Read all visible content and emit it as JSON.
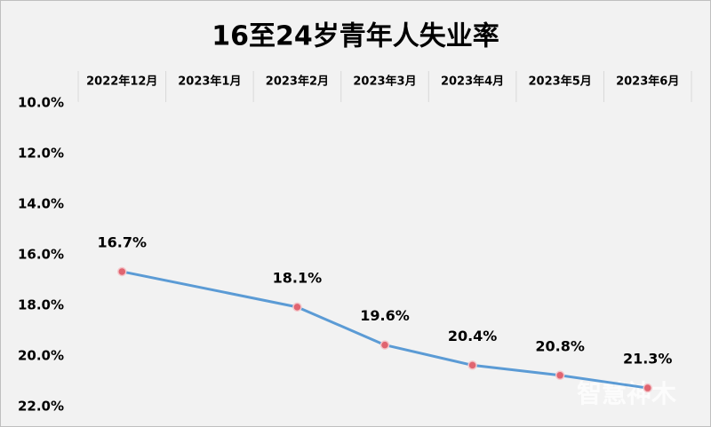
{
  "chart_data": {
    "type": "line",
    "title": "16至24岁青年人失业率",
    "categories": [
      "2022年12月",
      "2023年1月",
      "2023年2月",
      "2023年3月",
      "2023年4月",
      "2023年5月",
      "2023年6月"
    ],
    "series": [
      {
        "name": "16至24岁青年人失业率",
        "color": "#5b9bd5",
        "marker_color": "#e06470",
        "values": [
          16.7,
          null,
          18.1,
          19.6,
          20.4,
          20.8,
          21.3
        ],
        "value_labels": [
          "16.7%",
          null,
          "18.1%",
          "19.6%",
          "20.4%",
          "20.8%",
          "21.3%"
        ]
      }
    ],
    "ylim": [
      10,
      22
    ],
    "y_inverted": true,
    "yticks": [
      {
        "value": 10,
        "label": "10.0%"
      },
      {
        "value": 12,
        "label": "12.0%"
      },
      {
        "value": 14,
        "label": "14.0%"
      },
      {
        "value": 16,
        "label": "16.0%"
      },
      {
        "value": 18,
        "label": "18.0%"
      },
      {
        "value": 20,
        "label": "20.0%"
      },
      {
        "value": 22,
        "label": "22.0%"
      }
    ],
    "x_axis_position": "top",
    "watermark": "智慧神木"
  }
}
